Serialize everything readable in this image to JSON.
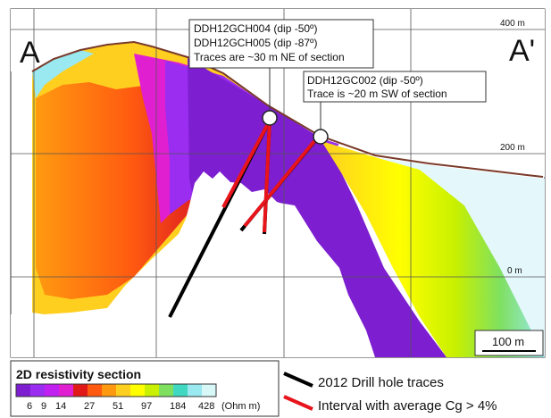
{
  "section_labels": {
    "left": "A",
    "right": "A'"
  },
  "elevation_labels": [
    {
      "text": "400 m"
    },
    {
      "text": "200 m"
    },
    {
      "text": "0 m"
    }
  ],
  "callouts": {
    "upper": {
      "lines": [
        "DDH12GCH004 (dip -50º)",
        "DDH12GCH005 (dip -87º)",
        "Traces are ~30 m NE of section"
      ]
    },
    "lower": {
      "lines": [
        "DDH12GC002 (dip -50º)",
        "Trace is ~20 m SW of section"
      ]
    }
  },
  "scale_bar": {
    "label": "100 m"
  },
  "legend": {
    "title": "2D resistivity section",
    "colors": [
      "#7d1fd0",
      "#9b2df0",
      "#c020f0",
      "#e020d0",
      "#e01818",
      "#ff5a10",
      "#ff9a10",
      "#ffcf20",
      "#ffff00",
      "#c8f000",
      "#7fe060",
      "#40d8c0",
      "#9ae8f0",
      "#d8f8f8"
    ],
    "ticks": [
      "6",
      "9",
      "14",
      "27",
      "51",
      "97",
      "184",
      "428"
    ],
    "unit": "(Ohm m)",
    "items": [
      {
        "color": "#000000",
        "label": "2012 Drill hole traces"
      },
      {
        "color": "#e8141c",
        "label": "Interval with average Cg > 4%"
      }
    ]
  }
}
